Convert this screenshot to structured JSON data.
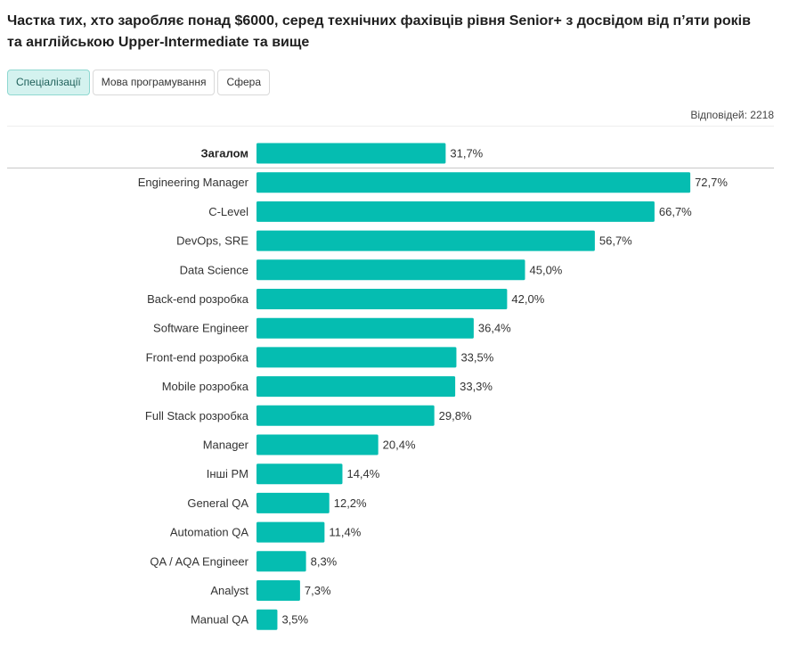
{
  "title": "Частка тих, хто заробляє понад $6000, серед технічних фахівців рівня Senior+ з досвідом від п’яти років та англійською Upper-Intermediate та вище",
  "tabs": [
    {
      "label": "Спеціалізації",
      "active": true
    },
    {
      "label": "Мова програмування",
      "active": false
    },
    {
      "label": "Сфера",
      "active": false
    }
  ],
  "responses": "Відповідей: 2218",
  "colors": {
    "bar": "#05bdb1",
    "active_tab_bg": "#d4f2ef"
  },
  "chart_data": {
    "type": "bar",
    "orientation": "horizontal",
    "unit": "%",
    "decimal_separator": ",",
    "xlim": [
      0,
      80
    ],
    "grid": false,
    "categories": [
      "Загалом",
      "Engineering Manager",
      "C-Level",
      "DevOps, SRE",
      "Data Science",
      "Back-end розробка",
      "Software Engineer",
      "Front-end розробка",
      "Mobile розробка",
      "Full Stack розробка",
      "Manager",
      "Інші PM",
      "General QA",
      "Automation QA",
      "QA / AQA Engineer",
      "Analyst",
      "Manual QA"
    ],
    "values": [
      31.7,
      72.7,
      66.7,
      56.7,
      45.0,
      42.0,
      36.4,
      33.5,
      33.3,
      29.8,
      20.4,
      14.4,
      12.2,
      11.4,
      8.3,
      7.3,
      3.5
    ],
    "highlighted_category": "Загалом"
  }
}
